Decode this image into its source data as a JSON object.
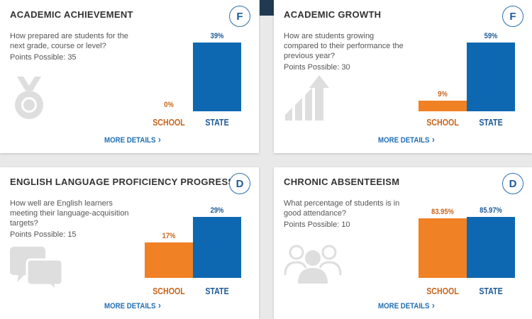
{
  "colors": {
    "school": "#f08125",
    "state": "#0e68b1",
    "link": "#1f6fb2"
  },
  "cards": [
    {
      "title": "ACADEMIC ACHIEVEMENT",
      "grade": "F",
      "question": "How prepared are students for the next grade, course or level?",
      "points": "Points Possible: 35",
      "icon": "medal-icon",
      "more_label": "MORE DETAILS",
      "chart_data": {
        "type": "bar",
        "categories": [
          "SCHOOL",
          "STATE"
        ],
        "values": [
          0,
          39
        ],
        "value_labels": [
          "0%",
          "39%"
        ],
        "ylim": [
          0,
          39
        ]
      }
    },
    {
      "title": "ACADEMIC GROWTH",
      "grade": "F",
      "question": "How are students growing compared to their performance the previous year?",
      "points": "Points Possible: 30",
      "icon": "growth-arrow-icon",
      "more_label": "MORE DETAILS",
      "chart_data": {
        "type": "bar",
        "categories": [
          "SCHOOL",
          "STATE"
        ],
        "values": [
          9,
          59
        ],
        "value_labels": [
          "9%",
          "59%"
        ],
        "ylim": [
          0,
          59
        ]
      }
    },
    {
      "title": "ENGLISH LANGUAGE PROFICIENCY PROGRESS",
      "grade": "D",
      "question": "How well are English learners meeting their language-acquisition targets?",
      "points": "Points Possible: 15",
      "icon": "speech-bubbles-icon",
      "more_label": "MORE DETAILS",
      "chart_data": {
        "type": "bar",
        "categories": [
          "SCHOOL",
          "STATE"
        ],
        "values": [
          17,
          29
        ],
        "value_labels": [
          "17%",
          "29%"
        ],
        "ylim": [
          0,
          29
        ]
      }
    },
    {
      "title": "CHRONIC ABSENTEEISM",
      "grade": "D",
      "question": "What percentage of students is in good attendance?",
      "points": "Points Possible: 10",
      "icon": "people-group-icon",
      "more_label": "MORE DETAILS",
      "chart_data": {
        "type": "bar",
        "categories": [
          "SCHOOL",
          "STATE"
        ],
        "values": [
          83.95,
          85.97
        ],
        "value_labels": [
          "83.95%",
          "85.97%"
        ],
        "ylim": [
          0,
          85.97
        ]
      }
    }
  ]
}
